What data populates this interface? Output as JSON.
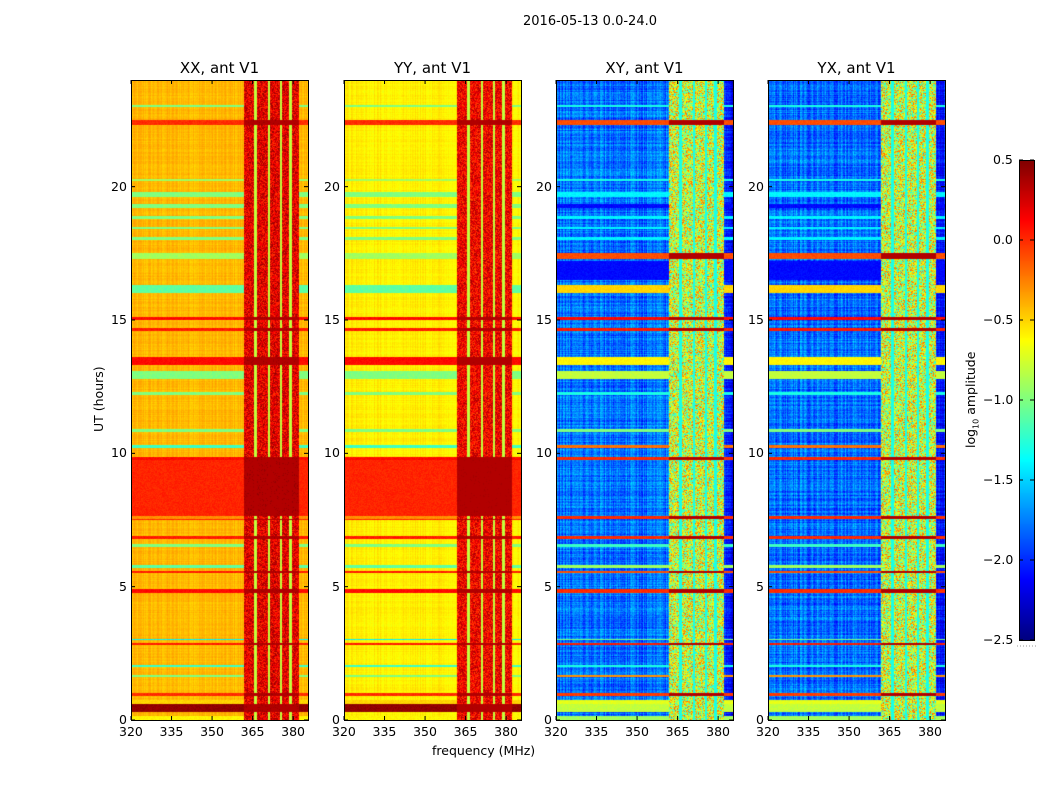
{
  "chart_data": {
    "type": "heatmap",
    "title": "2016-05-13 0.0-24.0",
    "xlabel": "frequency (MHz)",
    "ylabel": "UT (hours)",
    "xlim": [
      320,
      385.5
    ],
    "ylim": [
      0,
      24
    ],
    "xticks": [
      "320",
      "335",
      "350",
      "365",
      "380"
    ],
    "yticks": [
      "0",
      "5",
      "10",
      "15",
      "20"
    ],
    "colorbar": {
      "label_prefix": "log",
      "label_sub": "10",
      "label_suffix": " amplitude",
      "range": [
        -2.5,
        0.5
      ],
      "colormap": "jet",
      "ticks": [
        "0.5",
        "0.0",
        "−0.5",
        "−1.0",
        "−1.5",
        "−2.0",
        "−2.5"
      ],
      "tick_values": [
        0.5,
        0.0,
        -0.5,
        -1.0,
        -1.5,
        -2.0,
        -2.5
      ]
    },
    "rfi_band_MHz": [
      362,
      382
    ],
    "rfi_gaps_MHz": [
      366,
      371,
      375.5,
      379
    ],
    "panels": [
      {
        "title": "XX, ant V1",
        "group": "par",
        "base": -0.42,
        "rfi_level": 0.2
      },
      {
        "title": "YY, ant V1",
        "group": "par",
        "base": -0.58,
        "rfi_level": 0.15
      },
      {
        "title": "XY, ant V1",
        "group": "cross",
        "base": -1.8,
        "rfi_level": -0.75
      },
      {
        "title": "YX, ant V1",
        "group": "cross",
        "base": -1.8,
        "rfi_level": -0.75
      }
    ],
    "stripes": [
      {
        "hours": [
          0.0,
          0.15
        ],
        "par": -0.6,
        "cross": -0.9
      },
      {
        "hours": [
          0.3,
          0.6
        ],
        "par": 0.45,
        "cross": -0.8
      },
      {
        "hours": [
          0.6,
          0.75
        ],
        "par": -0.5,
        "cross": -0.7
      },
      {
        "hours": [
          0.9,
          1.0
        ],
        "par": 0.0,
        "cross": -0.05
      },
      {
        "hours": [
          1.6,
          1.7
        ],
        "par": -1.0,
        "cross": -0.3
      },
      {
        "hours": [
          2.0,
          2.05
        ],
        "par": -1.2,
        "cross": -1.3
      },
      {
        "hours": [
          2.8,
          2.9
        ],
        "par": 0.05,
        "cross": 0.05
      },
      {
        "hours": [
          3.0,
          3.05
        ],
        "par": -1.4,
        "cross": -1.0
      },
      {
        "hours": [
          4.75,
          4.9
        ],
        "par": 0.1,
        "cross": 0.0
      },
      {
        "hours": [
          5.5,
          5.6
        ],
        "par": 0.05,
        "cross": -0.1
      },
      {
        "hours": [
          5.7,
          5.8
        ],
        "par": -1.1,
        "cross": -0.9
      },
      {
        "hours": [
          6.5,
          6.6
        ],
        "par": -1.0,
        "cross": -1.2
      },
      {
        "hours": [
          6.8,
          6.9
        ],
        "par": 0.05,
        "cross": 0.0
      },
      {
        "hours": [
          7.5,
          9.8
        ],
        "par": 0.02,
        "cross": null
      },
      {
        "hours": [
          7.55,
          7.65
        ],
        "par": -0.3,
        "cross": 0.0
      },
      {
        "hours": [
          9.75,
          9.85
        ],
        "par": 0.1,
        "cross": 0.0
      },
      {
        "hours": [
          10.2,
          10.3
        ],
        "par": -1.2,
        "cross": -0.2
      },
      {
        "hours": [
          10.8,
          10.9
        ],
        "par": -1.0,
        "cross": -1.0
      },
      {
        "hours": [
          12.2,
          12.3
        ],
        "par": -1.0,
        "cross": -1.3
      },
      {
        "hours": [
          12.8,
          13.1
        ],
        "par": -1.0,
        "cross": -0.8
      },
      {
        "hours": [
          13.3,
          13.6
        ],
        "par": 0.1,
        "cross": -0.6
      },
      {
        "hours": [
          14.6,
          14.7
        ],
        "par": 0.05,
        "cross": 0.05
      },
      {
        "hours": [
          15.0,
          15.1
        ],
        "par": 0.1,
        "cross": 0.1
      },
      {
        "hours": [
          16.0,
          16.3
        ],
        "par": -1.1,
        "cross": -0.5
      },
      {
        "hours": [
          16.5,
          17.2
        ],
        "par": null,
        "cross": -2.1
      },
      {
        "hours": [
          17.3,
          17.5
        ],
        "par": -0.9,
        "cross": -0.1
      },
      {
        "hours": [
          18.0,
          18.1
        ],
        "par": -1.0,
        "cross": -1.4
      },
      {
        "hours": [
          18.4,
          18.5
        ],
        "par": -1.0,
        "cross": -1.4
      },
      {
        "hours": [
          18.8,
          18.9
        ],
        "par": -1.0,
        "cross": -1.4
      },
      {
        "hours": [
          19.2,
          19.35
        ],
        "par": -1.0,
        "cross": -2.1
      },
      {
        "hours": [
          19.6,
          19.8
        ],
        "par": -1.0,
        "cross": -1.4
      },
      {
        "hours": [
          20.2,
          20.3
        ],
        "par": -0.9,
        "cross": -1.3
      },
      {
        "hours": [
          22.3,
          22.5
        ],
        "par": 0.0,
        "cross": -0.1
      },
      {
        "hours": [
          23.0,
          23.05
        ],
        "par": -1.0,
        "cross": -1.3
      }
    ]
  }
}
